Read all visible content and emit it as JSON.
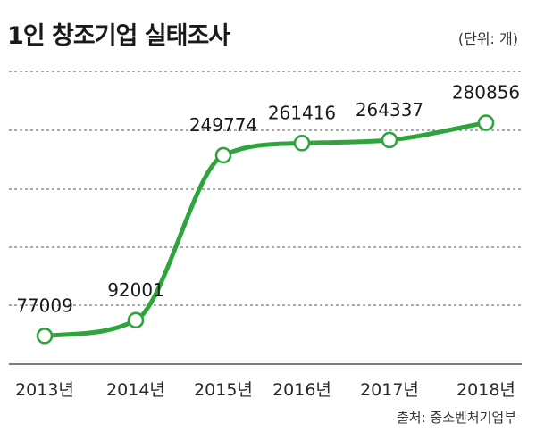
{
  "header": {
    "title": "1인 창조기업 실태조사",
    "unit": "(단위: 개)"
  },
  "footer": {
    "source": "출처: 중소벤처기업부"
  },
  "colors": {
    "line": "#2ea43c",
    "grid": "#555555",
    "marker_fill": "#ffffff"
  },
  "chart_data": {
    "type": "line",
    "title": "1인 창조기업 실태조사",
    "xlabel": "",
    "ylabel": "",
    "unit": "(단위: 개)",
    "categories": [
      "2013년",
      "2014년",
      "2015년",
      "2016년",
      "2017년",
      "2018년"
    ],
    "values": [
      77009,
      92001,
      249774,
      261416,
      264337,
      280856
    ],
    "data_labels": [
      "77009",
      "92001",
      "249774",
      "261416",
      "264337",
      "280856"
    ],
    "ylim": [
      50000,
      330000
    ],
    "grid": "horizontal dashed",
    "legend": "none",
    "line_style": "smooth",
    "markers": "hollow circles"
  }
}
